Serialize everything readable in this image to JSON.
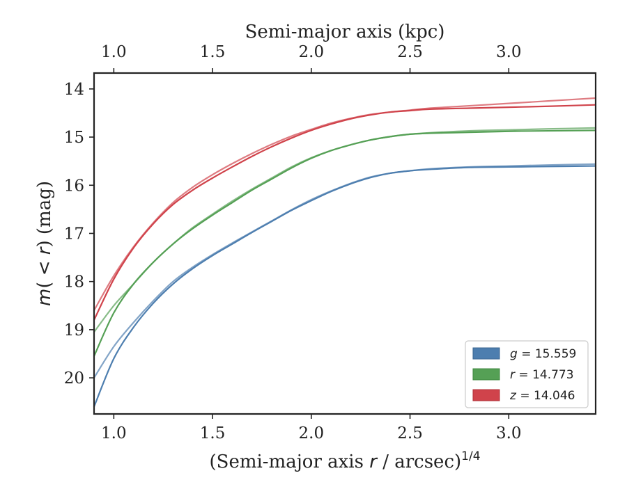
{
  "chart_data": {
    "type": "line",
    "title": "",
    "xlabel_base": "(Semi-major axis ",
    "xlabel_var": "r",
    "xlabel_unit": " / arcsec)",
    "xlabel_exp": "1/4",
    "xlabel_top": "Semi-major axis (kpc)",
    "ylabel_m": "m",
    "ylabel_paren": "( < ",
    "ylabel_r": "r",
    "ylabel_close": ") (mag)",
    "xlim": [
      0.9,
      3.44
    ],
    "ylim": [
      20.75,
      13.67
    ],
    "y_inverted": true,
    "xticks": [
      1.0,
      1.5,
      2.0,
      2.5,
      3.0
    ],
    "xtick_labels": [
      "1.0",
      "1.5",
      "2.0",
      "2.5",
      "3.0"
    ],
    "xticks_top": [
      1.0,
      1.5,
      2.0,
      2.5,
      3.0
    ],
    "xtick_top_labels": [
      "1.0",
      "1.5",
      "2.0",
      "2.5",
      "3.0"
    ],
    "yticks": [
      14,
      15,
      16,
      17,
      18,
      19,
      20
    ],
    "ytick_labels": [
      "14",
      "15",
      "16",
      "17",
      "18",
      "19",
      "20"
    ],
    "grid": false,
    "legend_position": "lower-right",
    "series": [
      {
        "name": "g",
        "legend_value": "15.559",
        "color": "#4d7eaf",
        "x": [
          0.9,
          1.0,
          1.1,
          1.2,
          1.3,
          1.4,
          1.5,
          1.6,
          1.7,
          1.8,
          1.9,
          2.0,
          2.1,
          2.2,
          2.3,
          2.4,
          2.5,
          2.6,
          2.8,
          3.0,
          3.2,
          3.44
        ],
        "y_lower": [
          20.6,
          19.6,
          18.95,
          18.45,
          18.05,
          17.73,
          17.46,
          17.22,
          16.98,
          16.75,
          16.52,
          16.32,
          16.13,
          15.97,
          15.84,
          15.75,
          15.7,
          15.67,
          15.63,
          15.62,
          15.61,
          15.6
        ],
        "y_upper": [
          20.0,
          19.35,
          18.85,
          18.4,
          18.0,
          17.7,
          17.44,
          17.2,
          16.97,
          16.74,
          16.51,
          16.3,
          16.12,
          15.96,
          15.83,
          15.75,
          15.7,
          15.66,
          15.62,
          15.6,
          15.58,
          15.56
        ]
      },
      {
        "name": "r",
        "legend_value": "14.773",
        "color": "#55a055",
        "x": [
          0.9,
          1.0,
          1.1,
          1.2,
          1.3,
          1.4,
          1.5,
          1.6,
          1.7,
          1.8,
          1.9,
          2.0,
          2.1,
          2.2,
          2.3,
          2.4,
          2.5,
          2.6,
          2.8,
          3.0,
          3.2,
          3.44
        ],
        "y_lower": [
          19.55,
          18.65,
          18.05,
          17.6,
          17.22,
          16.9,
          16.62,
          16.36,
          16.1,
          15.87,
          15.64,
          15.44,
          15.28,
          15.16,
          15.06,
          14.99,
          14.94,
          14.92,
          14.9,
          14.88,
          14.87,
          14.86
        ],
        "y_upper": [
          19.05,
          18.5,
          18.05,
          17.6,
          17.22,
          16.88,
          16.6,
          16.33,
          16.08,
          15.85,
          15.62,
          15.43,
          15.28,
          15.16,
          15.06,
          14.99,
          14.94,
          14.91,
          14.87,
          14.85,
          14.83,
          14.81
        ]
      },
      {
        "name": "z",
        "legend_value": "14.046",
        "color": "#d0434b",
        "x": [
          0.9,
          1.0,
          1.1,
          1.2,
          1.3,
          1.4,
          1.5,
          1.6,
          1.7,
          1.8,
          1.9,
          2.0,
          2.1,
          2.2,
          2.3,
          2.4,
          2.5,
          2.6,
          2.8,
          3.0,
          3.2,
          3.44
        ],
        "y_lower": [
          18.8,
          17.95,
          17.3,
          16.8,
          16.4,
          16.1,
          15.85,
          15.62,
          15.4,
          15.2,
          15.02,
          14.86,
          14.73,
          14.62,
          14.54,
          14.48,
          14.45,
          14.42,
          14.4,
          14.38,
          14.36,
          14.33
        ],
        "y_upper": [
          18.6,
          17.88,
          17.28,
          16.78,
          16.36,
          16.04,
          15.78,
          15.55,
          15.34,
          15.15,
          14.98,
          14.84,
          14.71,
          14.61,
          14.53,
          14.48,
          14.44,
          14.4,
          14.35,
          14.3,
          14.25,
          14.19
        ]
      }
    ]
  }
}
